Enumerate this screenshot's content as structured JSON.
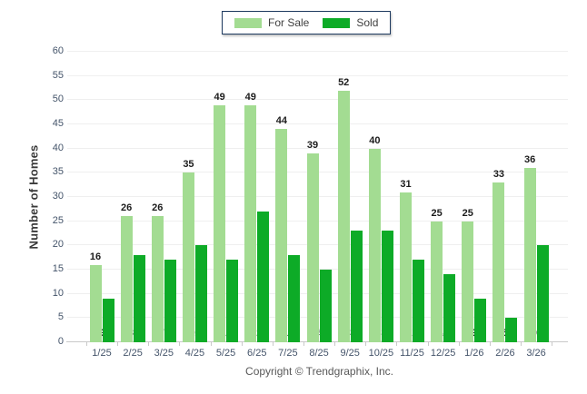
{
  "legend": {
    "items": [
      {
        "label": "For Sale",
        "color": "#a3dc92"
      },
      {
        "label": "Sold",
        "color": "#0dab27"
      }
    ]
  },
  "footer": {
    "copyright": "Copyright © Trendgraphix, Inc."
  },
  "chart_data": {
    "type": "bar",
    "title": "",
    "xlabel": "",
    "ylabel": "Number of Homes",
    "categories": [
      "1/25",
      "2/25",
      "3/25",
      "4/25",
      "5/25",
      "6/25",
      "7/25",
      "8/25",
      "9/25",
      "10/25",
      "11/25",
      "12/25",
      "1/26",
      "2/26",
      "3/26"
    ],
    "series": [
      {
        "name": "For Sale",
        "color": "#a3dc92",
        "values": [
          16,
          26,
          26,
          35,
          49,
          49,
          44,
          39,
          52,
          40,
          31,
          25,
          25,
          33,
          36
        ]
      },
      {
        "name": "Sold",
        "color": "#0dab27",
        "values": [
          9,
          18,
          17,
          20,
          17,
          27,
          18,
          15,
          23,
          23,
          17,
          14,
          9,
          5,
          20
        ]
      }
    ],
    "ylim": [
      0,
      60
    ],
    "ytick_step": 5,
    "grid": true,
    "legend_position": "top-center",
    "value_label_placement": {
      "for_sale": "above bar",
      "sold": "at bar base"
    }
  }
}
